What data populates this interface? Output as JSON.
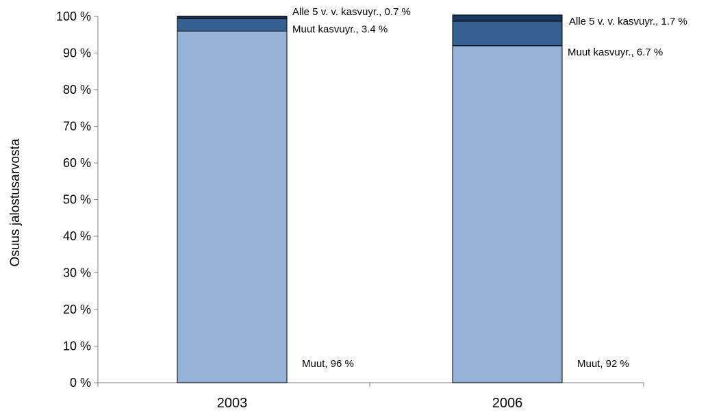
{
  "chart_data": {
    "type": "bar",
    "stacked": true,
    "percent_stacked": true,
    "categories": [
      "2003",
      "2006"
    ],
    "series": [
      {
        "name": "Muut",
        "values": [
          96,
          92
        ],
        "color": "#95b3d7",
        "labels": [
          "Muut, 96 %",
          "Muut, 92 %"
        ]
      },
      {
        "name": "Muut kasvuyr.",
        "values": [
          3.4,
          6.7
        ],
        "color": "#376092",
        "labels": [
          "Muut kasvuyr., 3.4 %",
          "Muut kasvuyr., 6.7 %"
        ]
      },
      {
        "name": "Alle 5 v. v. kasvuyr.",
        "values": [
          0.7,
          1.7
        ],
        "color": "#17375e",
        "labels": [
          "Alle 5 v. v. kasvuyr., 0.7 %",
          "Alle 5 v. v. kasvuyr., 1.7 %"
        ]
      }
    ],
    "ylabel": "Osuus jalostusarvosta",
    "ylim": [
      0,
      100
    ],
    "yticks": [
      "0 %",
      "10 %",
      "20 %",
      "30 %",
      "40 %",
      "50 %",
      "60 %",
      "70 %",
      "80 %",
      "90 %",
      "100 %"
    ],
    "grid": false,
    "legend": "none"
  }
}
